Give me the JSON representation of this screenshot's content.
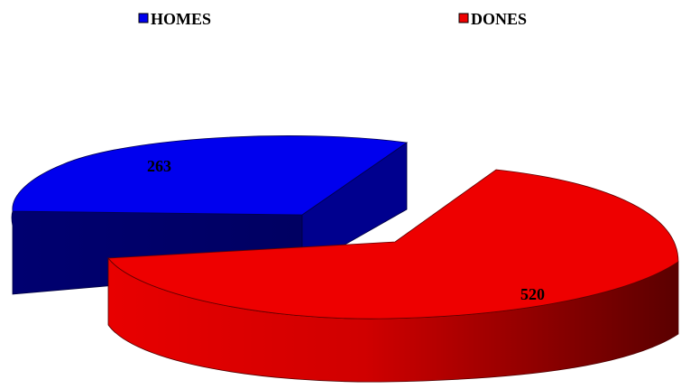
{
  "chart_data": {
    "type": "pie",
    "style": "3d-exploded",
    "legend_position": "top",
    "slices": [
      {
        "label": "HOMES",
        "value": 263,
        "color": "#0000ee"
      },
      {
        "label": "DONES",
        "value": 520,
        "color": "#ee0000"
      }
    ]
  }
}
